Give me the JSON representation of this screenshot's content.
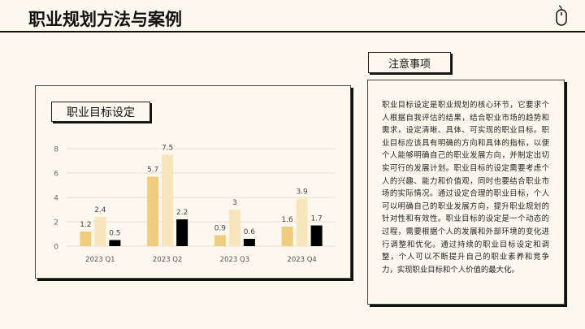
{
  "header": {
    "title": "职业规划方法与案例",
    "icon": "mouse-icon"
  },
  "chart_panel": {
    "title": "职业目标设定"
  },
  "notes": {
    "title": "注意事项",
    "body": "职业目标设定是职业规划的核心环节，它要求个人根据自我评估的结果，结合职业市场的趋势和需求，设定清晰、具体、可实现的职业目标。职业目标应该具有明确的方向和具体的指标，以便个人能够明确自己的职业发展方向，并制定出切实可行的发展计划。职业目标的设定需要考虑个人的兴趣、能力和价值观，同时也要结合职业市场的实际情况。通过设定合理的职业目标，个人可以明确自己的职业发展方向，提升职业规划的针对性和有效性。职业目标的设定是一个动态的过程，需要根据个人的发展和外部环境的变化进行调整和优化。通过持续的职业目标设定和调整，个人可以不断提升自己的职业素养和竞争力，实现职业目标和个人价值的最大化。"
  },
  "chart_data": {
    "type": "bar",
    "categories": [
      "2023 Q1",
      "2023 Q2",
      "2023 Q3",
      "2023 Q4"
    ],
    "series": [
      {
        "values": [
          1.2,
          5.7,
          0.9,
          1.6
        ],
        "color": "#f0cc7e"
      },
      {
        "values": [
          2.4,
          7.5,
          3,
          3.9
        ],
        "color": "#f8e4bd"
      },
      {
        "values": [
          0.5,
          2.2,
          0.6,
          1.7
        ],
        "color": "#000000"
      }
    ],
    "yticks": [
      0,
      2,
      4,
      6,
      8
    ],
    "ylim": [
      0,
      8
    ],
    "grid": true,
    "data_labels": true
  }
}
